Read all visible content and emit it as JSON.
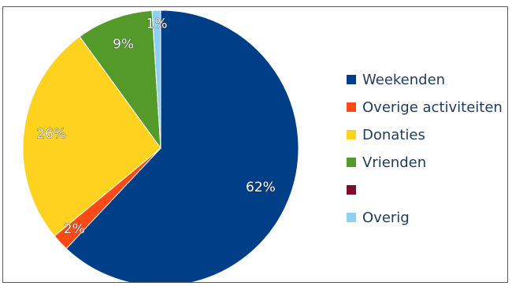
{
  "chart_data": {
    "type": "pie",
    "title": "",
    "legend_position": "right",
    "slices": [
      {
        "name": "Weekenden",
        "value": 62,
        "label": "62%",
        "color": "#003f87"
      },
      {
        "name": "Overige activiteiten",
        "value": 2,
        "label": "2%",
        "color": "#ff4a16"
      },
      {
        "name": "Donaties",
        "value": 26,
        "label": "26%",
        "color": "#ffd21f"
      },
      {
        "name": "Vrienden",
        "value": 9,
        "label": "9%",
        "color": "#549a2a"
      },
      {
        "name": "",
        "value": 0,
        "label": "",
        "color": "#7d0e2b"
      },
      {
        "name": "Overig",
        "value": 1,
        "label": "1%",
        "color": "#8fd0f2"
      }
    ]
  }
}
